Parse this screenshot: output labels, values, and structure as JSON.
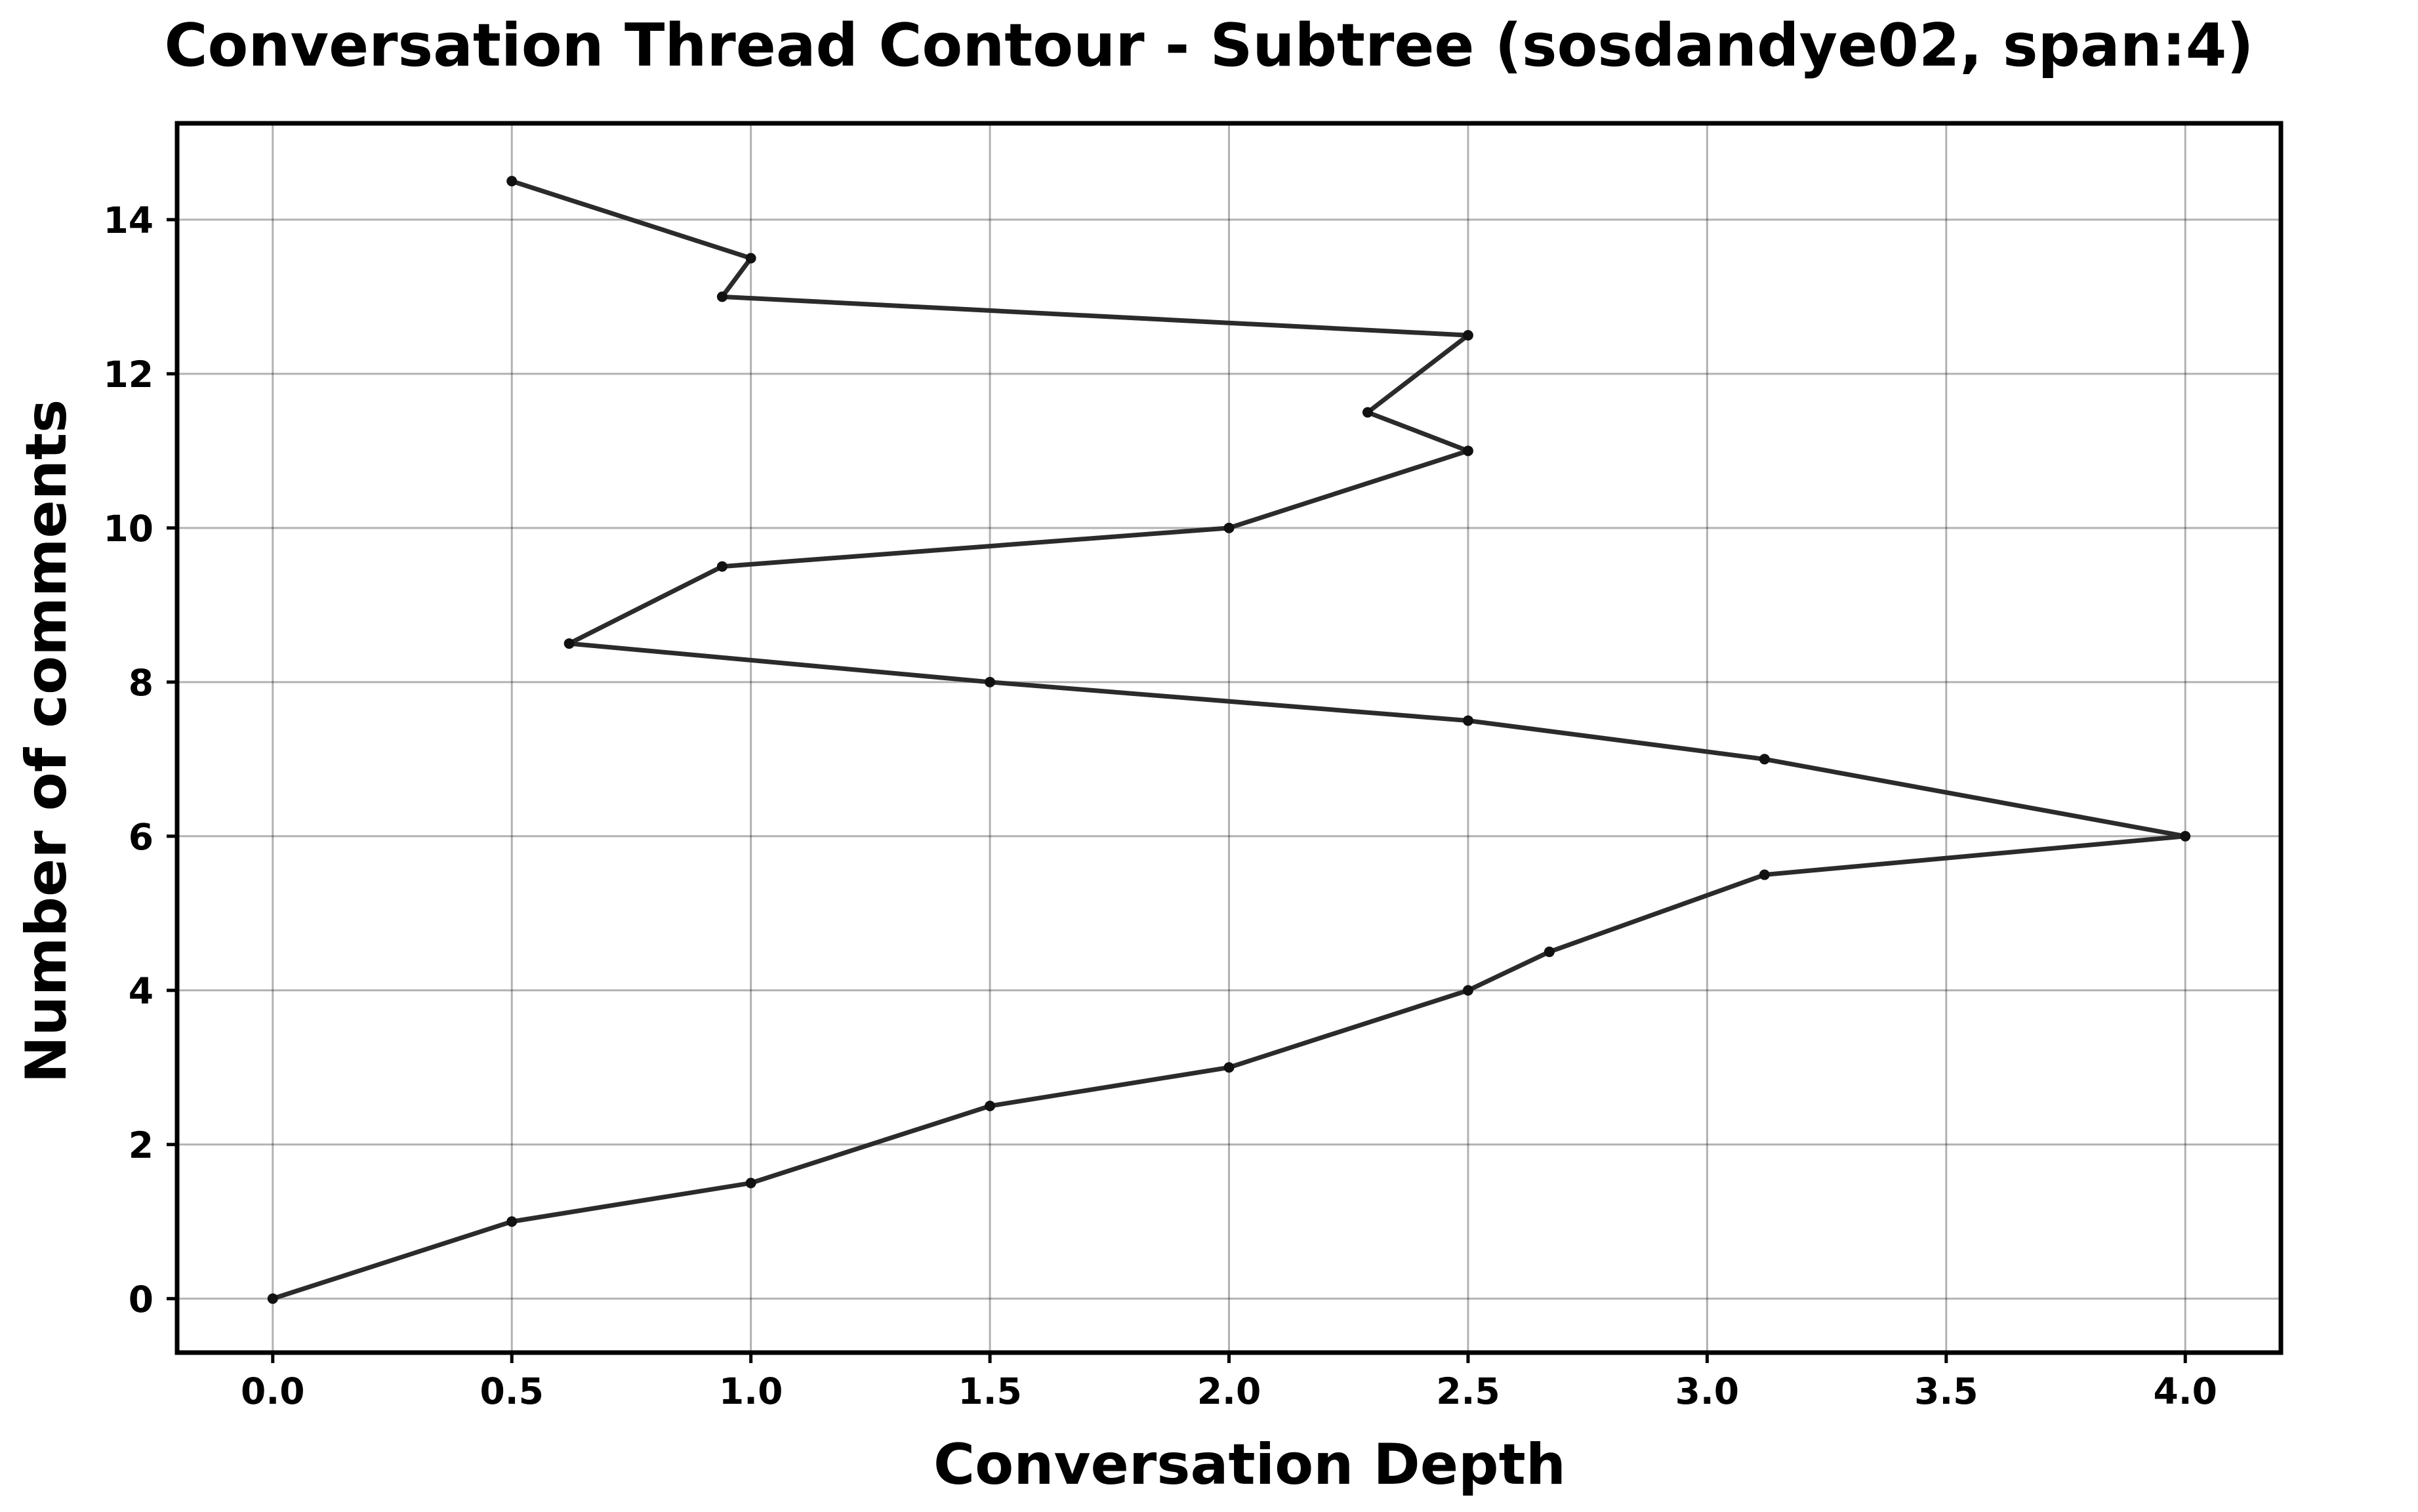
{
  "chart_data": {
    "type": "line",
    "title": "Conversation Thread Contour  - Subtree (sosdandye02, span:4)",
    "xlabel": "Conversation Depth",
    "ylabel": "Number of comments",
    "xlim": [
      -0.2,
      4.2
    ],
    "ylim": [
      -0.7,
      15.25
    ],
    "xticks": [
      0.0,
      0.5,
      1.0,
      1.5,
      2.0,
      2.5,
      3.0,
      3.5,
      4.0
    ],
    "xtick_labels": [
      "0.0",
      "0.5",
      "1.0",
      "1.5",
      "2.0",
      "2.5",
      "3.0",
      "3.5",
      "4.0"
    ],
    "yticks": [
      0,
      2,
      4,
      6,
      8,
      10,
      12,
      14
    ],
    "ytick_labels": [
      "0",
      "2",
      "4",
      "6",
      "8",
      "10",
      "12",
      "14"
    ],
    "grid": true,
    "line_color": "#2b2b2b",
    "series": [
      {
        "x": [
          0.0,
          0.5,
          1.0,
          1.5,
          2.0,
          2.5,
          2.67,
          3.12,
          4.0,
          3.12,
          2.5,
          1.5,
          0.62,
          0.94,
          2.0,
          2.5,
          2.29,
          2.5,
          0.94,
          1.0,
          0.5
        ],
        "y": [
          0.0,
          1.0,
          1.5,
          2.5,
          3.0,
          4.0,
          4.5,
          5.5,
          6.0,
          7.0,
          7.5,
          8.0,
          8.5,
          9.5,
          10.0,
          11.0,
          11.5,
          12.5,
          13.0,
          13.5,
          14.5
        ]
      }
    ]
  }
}
